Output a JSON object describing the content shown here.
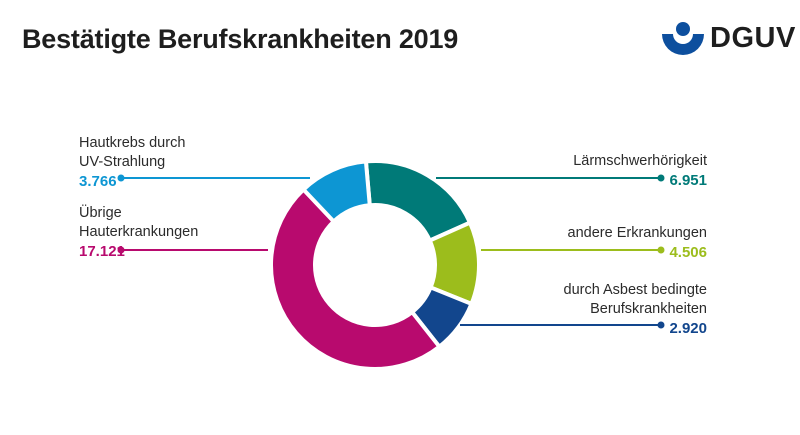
{
  "header": {
    "title": "Bestätigte Berufskrankheiten 2019",
    "logo_text": "DGUV",
    "logo_color": "#0d4f9e"
  },
  "chart_data": {
    "type": "pie",
    "subtype": "donut",
    "title": "Bestätigte Berufskrankheiten 2019",
    "start": "top, clockwise",
    "slices": [
      {
        "name": "Lärmschwerhörigkeit",
        "label_lines": [
          "Lärmschwerhörigkeit"
        ],
        "value": 6951,
        "display": "6.951",
        "color": "#007a78",
        "side": "right"
      },
      {
        "name": "andere Erkrankungen",
        "label_lines": [
          "andere Erkrankungen"
        ],
        "value": 4506,
        "display": "4.506",
        "color": "#9cbd1c",
        "side": "right"
      },
      {
        "name": "durch Asbest bedingte Berufskrankheiten",
        "label_lines": [
          "durch Asbest bedingte",
          "Berufskrankheiten"
        ],
        "value": 2920,
        "display": "2.920",
        "color": "#12468d",
        "side": "right"
      },
      {
        "name": "Übrige Hauterkrankungen",
        "label_lines": [
          "Übrige",
          "Hauterkrankungen"
        ],
        "value": 17121,
        "display": "17.121",
        "color": "#b80a6e",
        "side": "left"
      },
      {
        "name": "Hautkrebs durch UV-Strahlung",
        "label_lines": [
          "Hautkrebs durch",
          "UV-Strahlung"
        ],
        "value": 3766,
        "display": "3.766",
        "color": "#0d96d3",
        "side": "left"
      }
    ]
  }
}
